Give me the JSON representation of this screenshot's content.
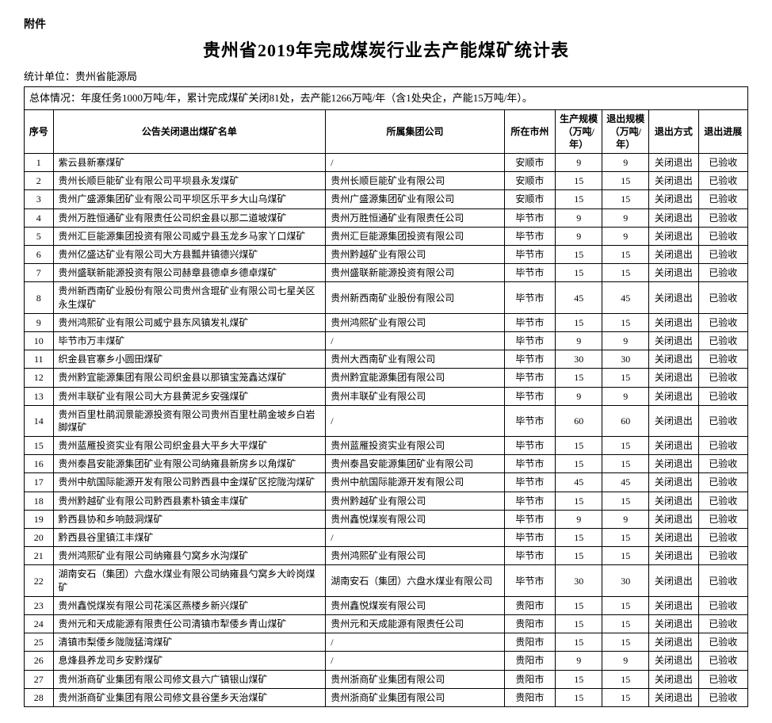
{
  "attachment_label": "附件",
  "title": "贵州省2019年完成煤炭行业去产能煤矿统计表",
  "unit_label": "统计单位：贵州省能源局",
  "summary": "总体情况：年度任务1000万吨/年，累计完成煤矿关闭81处，去产能1266万吨/年（含1处央企，产能15万吨/年）。",
  "columns": {
    "idx": "序号",
    "name": "公告关闭退出煤矿名单",
    "group": "所属集团公司",
    "city": "所在市州",
    "cap": "生产规模（万吨/年）",
    "exit": "退出规模（万吨/年）",
    "mode": "退出方式",
    "prog": "退出进展"
  },
  "rows": [
    {
      "idx": "1",
      "name": "紫云县新寨煤矿",
      "group": "/",
      "city": "安顺市",
      "cap": "9",
      "exit": "9",
      "mode": "关闭退出",
      "prog": "已验收"
    },
    {
      "idx": "2",
      "name": "贵州长顺巨能矿业有限公司平坝县永发煤矿",
      "group": "贵州长顺巨能矿业有限公司",
      "city": "安顺市",
      "cap": "15",
      "exit": "15",
      "mode": "关闭退出",
      "prog": "已验收"
    },
    {
      "idx": "3",
      "name": "贵州广盛源集团矿业有限公司平坝区乐平乡大山乌煤矿",
      "group": "贵州广盛源集团矿业有限公司",
      "city": "安顺市",
      "cap": "15",
      "exit": "15",
      "mode": "关闭退出",
      "prog": "已验收"
    },
    {
      "idx": "4",
      "name": "贵州万胜恒通矿业有限责任公司织金县以那二道坡煤矿",
      "group": "贵州万胜恒通矿业有限责任公司",
      "city": "毕节市",
      "cap": "9",
      "exit": "9",
      "mode": "关闭退出",
      "prog": "已验收"
    },
    {
      "idx": "5",
      "name": "贵州汇巨能源集团投资有限公司威宁县玉龙乡马家丫口煤矿",
      "group": "贵州汇巨能源集团投资有限公司",
      "city": "毕节市",
      "cap": "9",
      "exit": "9",
      "mode": "关闭退出",
      "prog": "已验收"
    },
    {
      "idx": "6",
      "name": "贵州亿盛达矿业有限公司大方县瓢井镇德兴煤矿",
      "group": "贵州黔越矿业有限公司",
      "city": "毕节市",
      "cap": "15",
      "exit": "15",
      "mode": "关闭退出",
      "prog": "已验收"
    },
    {
      "idx": "7",
      "name": "贵州盛联新能源投资有限公司赫章县德卓乡德卓煤矿",
      "group": "贵州盛联新能源投资有限公司",
      "city": "毕节市",
      "cap": "15",
      "exit": "15",
      "mode": "关闭退出",
      "prog": "已验收"
    },
    {
      "idx": "8",
      "name": "贵州新西南矿业股份有限公司贵州含琨矿业有限公司七星关区永生煤矿",
      "group": "贵州新西南矿业股份有限公司",
      "city": "毕节市",
      "cap": "45",
      "exit": "45",
      "mode": "关闭退出",
      "prog": "已验收"
    },
    {
      "idx": "9",
      "name": "贵州鸿熙矿业有限公司威宁县东风镇发礼煤矿",
      "group": "贵州鸿熙矿业有限公司",
      "city": "毕节市",
      "cap": "15",
      "exit": "15",
      "mode": "关闭退出",
      "prog": "已验收"
    },
    {
      "idx": "10",
      "name": "毕节市万丰煤矿",
      "group": "/",
      "city": "毕节市",
      "cap": "9",
      "exit": "9",
      "mode": "关闭退出",
      "prog": "已验收"
    },
    {
      "idx": "11",
      "name": "织金县官寨乡小圆田煤矿",
      "group": "贵州大西南矿业有限公司",
      "city": "毕节市",
      "cap": "30",
      "exit": "30",
      "mode": "关闭退出",
      "prog": "已验收"
    },
    {
      "idx": "12",
      "name": "贵州黔宜能源集团有限公司织金县以那镇宝笼鑫达煤矿",
      "group": "贵州黔宜能源集团有限公司",
      "city": "毕节市",
      "cap": "15",
      "exit": "15",
      "mode": "关闭退出",
      "prog": "已验收"
    },
    {
      "idx": "13",
      "name": "贵州丰联矿业有限公司大方县黄泥乡安强煤矿",
      "group": "贵州丰联矿业有限公司",
      "city": "毕节市",
      "cap": "9",
      "exit": "9",
      "mode": "关闭退出",
      "prog": "已验收"
    },
    {
      "idx": "14",
      "name": "贵州百里杜鹃润景能源投资有限公司贵州百里杜鹃金坡乡白岩脚煤矿",
      "group": "/",
      "city": "毕节市",
      "cap": "60",
      "exit": "60",
      "mode": "关闭退出",
      "prog": "已验收"
    },
    {
      "idx": "15",
      "name": "贵州蓝雁投资实业有限公司织金县大平乡大平煤矿",
      "group": "贵州蓝雁投资实业有限公司",
      "city": "毕节市",
      "cap": "15",
      "exit": "15",
      "mode": "关闭退出",
      "prog": "已验收"
    },
    {
      "idx": "16",
      "name": "贵州泰昌安能源集团矿业有限公司纳雍县新房乡以角煤矿",
      "group": "贵州泰昌安能源集团矿业有限公司",
      "city": "毕节市",
      "cap": "15",
      "exit": "15",
      "mode": "关闭退出",
      "prog": "已验收"
    },
    {
      "idx": "17",
      "name": "贵州中航国际能源开发有限公司黔西县中金煤矿区挖陇沟煤矿",
      "group": "贵州中航国际能源开发有限公司",
      "city": "毕节市",
      "cap": "45",
      "exit": "45",
      "mode": "关闭退出",
      "prog": "已验收"
    },
    {
      "idx": "18",
      "name": "贵州黔越矿业有限公司黔西县素朴镇金丰煤矿",
      "group": "贵州黔越矿业有限公司",
      "city": "毕节市",
      "cap": "15",
      "exit": "15",
      "mode": "关闭退出",
      "prog": "已验收"
    },
    {
      "idx": "19",
      "name": "黔西县协和乡响鼓洞煤矿",
      "group": "贵州鑫悦煤炭有限公司",
      "city": "毕节市",
      "cap": "9",
      "exit": "9",
      "mode": "关闭退出",
      "prog": "已验收"
    },
    {
      "idx": "20",
      "name": "黔西县谷里镇江丰煤矿",
      "group": "/",
      "city": "毕节市",
      "cap": "15",
      "exit": "15",
      "mode": "关闭退出",
      "prog": "已验收"
    },
    {
      "idx": "21",
      "name": "贵州鸿熙矿业有限公司纳雍县勺窝乡水沟煤矿",
      "group": "贵州鸿熙矿业有限公司",
      "city": "毕节市",
      "cap": "15",
      "exit": "15",
      "mode": "关闭退出",
      "prog": "已验收"
    },
    {
      "idx": "22",
      "name": "湖南安石（集团）六盘水煤业有限公司纳雍县勺窝乡大岭岗煤矿",
      "group": "湖南安石（集团）六盘水煤业有限公司",
      "city": "毕节市",
      "cap": "30",
      "exit": "30",
      "mode": "关闭退出",
      "prog": "已验收"
    },
    {
      "idx": "23",
      "name": "贵州鑫悦煤炭有限公司花溪区燕楼乡新兴煤矿",
      "group": "贵州鑫悦煤炭有限公司",
      "city": "贵阳市",
      "cap": "15",
      "exit": "15",
      "mode": "关闭退出",
      "prog": "已验收"
    },
    {
      "idx": "24",
      "name": "贵州元和天成能源有限责任公司清镇市犁倭乡青山煤矿",
      "group": "贵州元和天成能源有限责任公司",
      "city": "贵阳市",
      "cap": "15",
      "exit": "15",
      "mode": "关闭退出",
      "prog": "已验收"
    },
    {
      "idx": "25",
      "name": "清镇市梨倭乡陇陇猛湾煤矿",
      "group": "/",
      "city": "贵阳市",
      "cap": "15",
      "exit": "15",
      "mode": "关闭退出",
      "prog": "已验收"
    },
    {
      "idx": "26",
      "name": "息烽县养龙司乡安黔煤矿",
      "group": "/",
      "city": "贵阳市",
      "cap": "9",
      "exit": "9",
      "mode": "关闭退出",
      "prog": "已验收"
    },
    {
      "idx": "27",
      "name": "贵州浙商矿业集团有限公司修文县六广镇银山煤矿",
      "group": "贵州浙商矿业集团有限公司",
      "city": "贵阳市",
      "cap": "15",
      "exit": "15",
      "mode": "关闭退出",
      "prog": "已验收"
    },
    {
      "idx": "28",
      "name": "贵州浙商矿业集团有限公司修文县谷堡乡天治煤矿",
      "group": "贵州浙商矿业集团有限公司",
      "city": "贵阳市",
      "cap": "15",
      "exit": "15",
      "mode": "关闭退出",
      "prog": "已验收"
    }
  ]
}
